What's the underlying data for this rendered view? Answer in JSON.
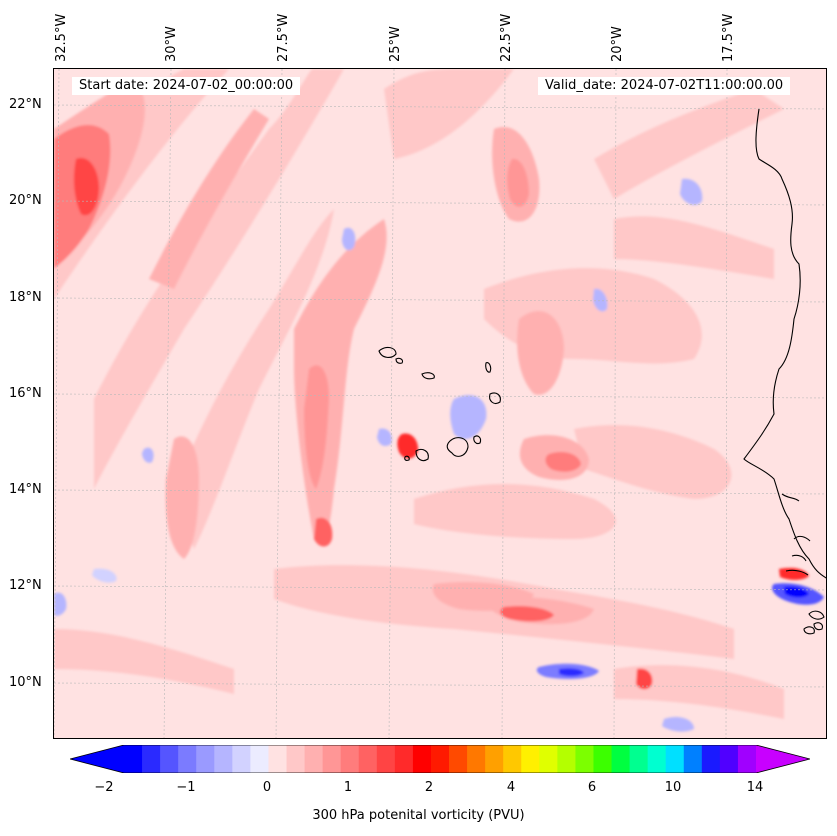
{
  "header": {
    "start_date": "Start date: 2024-07-02_00:00:00",
    "valid_date": "Valid_date: 2024-07-02T11:00:00.00"
  },
  "axes": {
    "lon_labels": [
      "32.5°W",
      "30°W",
      "27.5°W",
      "25°W",
      "22.5°W",
      "20°W",
      "17.5°W"
    ],
    "lat_labels": [
      "22°N",
      "20°N",
      "18°N",
      "16°N",
      "14°N",
      "12°N",
      "10°N"
    ]
  },
  "colorbar": {
    "title": "300 hPa potenital vorticity (PVU)",
    "tick_labels": [
      "−2",
      "−1",
      "0",
      "1",
      "2",
      "4",
      "6",
      "10",
      "14"
    ],
    "colors": [
      "#0000ff",
      "#2a2aff",
      "#5555ff",
      "#7b7bff",
      "#9a9aff",
      "#b5b5ff",
      "#d2d2ff",
      "#ececff",
      "#ffe2e2",
      "#ffc8c8",
      "#ffb0b0",
      "#ff9696",
      "#ff7c7c",
      "#ff6262",
      "#ff4444",
      "#ff2a2a",
      "#ff0000",
      "#ff1a00",
      "#ff4a00",
      "#ff7800",
      "#ffa000",
      "#ffc800",
      "#fff000",
      "#e0ff00",
      "#b4ff00",
      "#7cff00",
      "#3cff00",
      "#00ff40",
      "#00ff90",
      "#00ffd0",
      "#00e0ff",
      "#0080ff",
      "#1a1aff",
      "#5000ff",
      "#a000ff"
    ],
    "extend_min_color": "#0000ff",
    "extend_max_color": "#c800ff"
  }
}
